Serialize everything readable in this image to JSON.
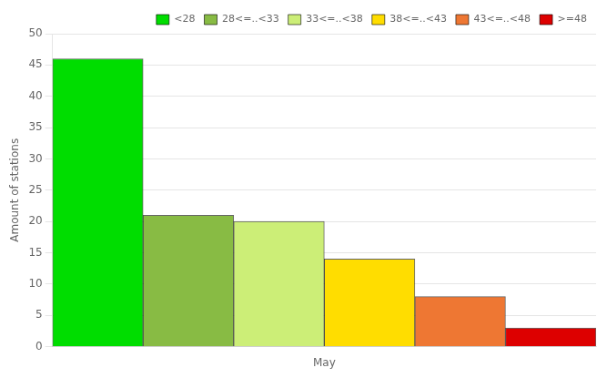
{
  "chart_data": {
    "type": "bar",
    "categories": [
      "May"
    ],
    "series": [
      {
        "name": "<28",
        "color": "#00dd00",
        "values": [
          46
        ]
      },
      {
        "name": "28<=..<33",
        "color": "#88bb44",
        "values": [
          21
        ]
      },
      {
        "name": "33<=..<38",
        "color": "#ccee77",
        "values": [
          20
        ]
      },
      {
        "name": "38<=..<43",
        "color": "#ffdd00",
        "values": [
          14
        ]
      },
      {
        "name": "43<=..<48",
        "color": "#ee7733",
        "values": [
          8
        ]
      },
      {
        "name": ">=48",
        "color": "#dd0000",
        "values": [
          3
        ]
      }
    ],
    "ylabel": "Amount of stations",
    "ylim": [
      0,
      50
    ],
    "yticks": [
      0,
      5,
      10,
      15,
      20,
      25,
      30,
      35,
      40,
      45,
      50
    ],
    "grid": true,
    "legend": "upper right"
  }
}
